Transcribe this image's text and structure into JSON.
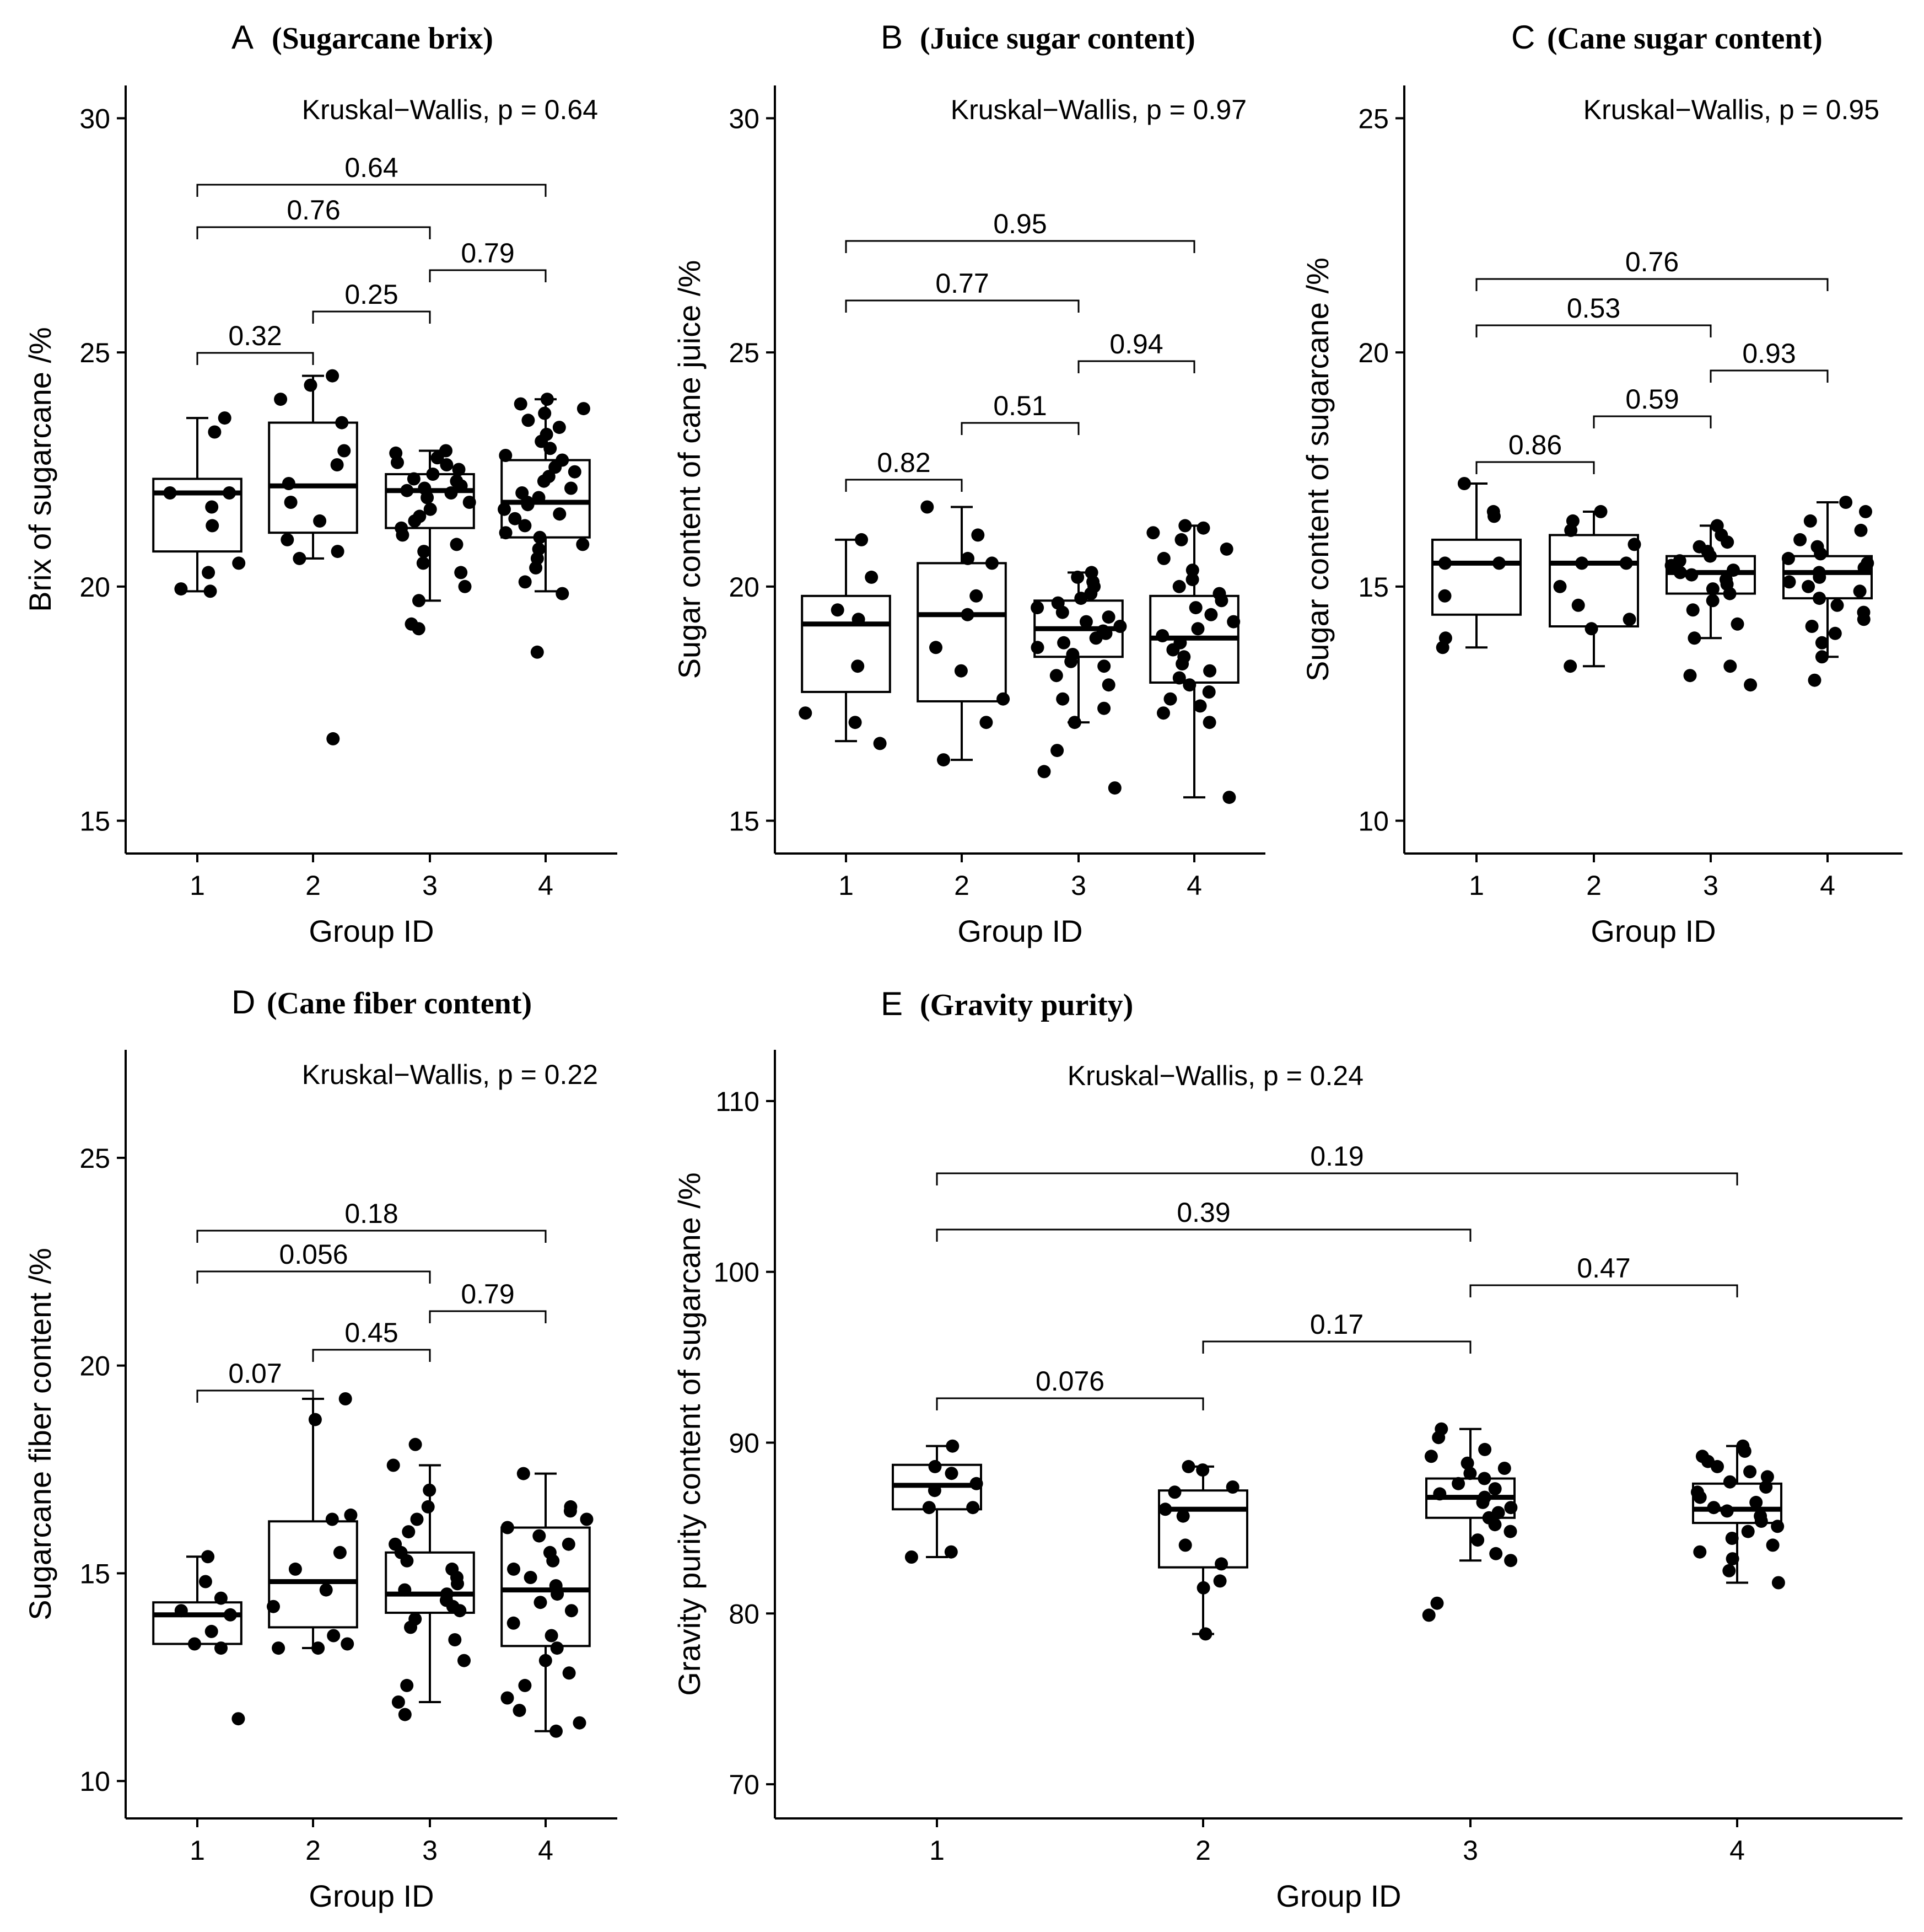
{
  "chart_data": [
    {
      "type": "box",
      "panel_label": "A",
      "title": "(Sugarcane brix)",
      "xlabel": "Group ID",
      "ylabel": "Brix of sugarcane /%",
      "categories": [
        "1",
        "2",
        "3",
        "4"
      ],
      "yticks": [
        15,
        20,
        25,
        30
      ],
      "ylim": [
        14.3,
        30.7
      ],
      "kruskal": "Kruskal−Wallis, p = 0.64",
      "boxes": [
        {
          "group": "1",
          "whisker_low": 19.9,
          "q1": 20.75,
          "median": 22.0,
          "q3": 22.3,
          "whisker_high": 23.6
        },
        {
          "group": "2",
          "whisker_low": 20.6,
          "q1": 21.15,
          "median": 22.15,
          "q3": 23.5,
          "whisker_high": 24.5
        },
        {
          "group": "3",
          "whisker_low": 19.7,
          "q1": 21.25,
          "median": 22.05,
          "q3": 22.4,
          "whisker_high": 22.9
        },
        {
          "group": "4",
          "whisker_low": 19.9,
          "q1": 21.05,
          "median": 21.8,
          "q3": 22.7,
          "whisker_high": 24.0
        }
      ],
      "points": [
        [
          19.9,
          19.95,
          20.3,
          20.5,
          21.3,
          21.7,
          22.0,
          22.0,
          23.3,
          23.6
        ],
        [
          16.75,
          20.6,
          20.75,
          21.0,
          21.4,
          21.8,
          22.2,
          22.6,
          22.9,
          23.5,
          24.0,
          24.3,
          24.5
        ],
        [
          19.1,
          19.2,
          19.7,
          20.0,
          20.3,
          20.5,
          20.75,
          20.9,
          21.1,
          21.25,
          21.4,
          21.5,
          21.65,
          21.8,
          21.9,
          22.0,
          22.05,
          22.1,
          22.15,
          22.25,
          22.3,
          22.4,
          22.5,
          22.6,
          22.65,
          22.75,
          22.85,
          22.9
        ],
        [
          18.6,
          19.85,
          20.1,
          20.4,
          20.6,
          20.8,
          20.9,
          21.05,
          21.15,
          21.3,
          21.45,
          21.55,
          21.65,
          21.75,
          21.8,
          21.9,
          22.0,
          22.1,
          22.25,
          22.35,
          22.45,
          22.55,
          22.7,
          22.8,
          22.95,
          23.1,
          23.25,
          23.4,
          23.55,
          23.7,
          23.8,
          23.9,
          24.0
        ]
      ],
      "comparisons": [
        {
          "groups": [
            "1",
            "2"
          ],
          "p": "0.32"
        },
        {
          "groups": [
            "2",
            "3"
          ],
          "p": "0.25"
        },
        {
          "groups": [
            "3",
            "4"
          ],
          "p": "0.79"
        },
        {
          "groups": [
            "1",
            "3"
          ],
          "p": "0.76"
        },
        {
          "groups": [
            "1",
            "4"
          ],
          "p": "0.64"
        }
      ]
    },
    {
      "type": "box",
      "panel_label": "B",
      "title": "(Juice sugar content)",
      "xlabel": "Group ID",
      "ylabel": "Sugar content of cane juice /%",
      "categories": [
        "1",
        "2",
        "3",
        "4"
      ],
      "yticks": [
        15,
        20,
        25,
        30
      ],
      "ylim": [
        14.3,
        30.7
      ],
      "kruskal": "Kruskal−Wallis, p = 0.97",
      "boxes": [
        {
          "group": "1",
          "whisker_low": 16.7,
          "q1": 17.75,
          "median": 19.2,
          "q3": 19.8,
          "whisker_high": 21.0
        },
        {
          "group": "2",
          "whisker_low": 16.3,
          "q1": 17.55,
          "median": 19.4,
          "q3": 20.5,
          "whisker_high": 21.7
        },
        {
          "group": "3",
          "whisker_low": 17.1,
          "q1": 18.5,
          "median": 19.1,
          "q3": 19.7,
          "whisker_high": 20.3
        },
        {
          "group": "4",
          "whisker_low": 15.5,
          "q1": 17.95,
          "median": 18.9,
          "q3": 19.8,
          "whisker_high": 21.3
        }
      ],
      "points": [
        [
          16.65,
          17.1,
          17.3,
          18.3,
          19.3,
          19.5,
          20.2,
          21.0
        ],
        [
          16.3,
          17.1,
          17.6,
          18.2,
          18.7,
          19.4,
          19.8,
          20.5,
          20.6,
          21.1,
          21.7
        ],
        [
          15.7,
          16.05,
          16.5,
          17.1,
          17.4,
          17.6,
          17.9,
          18.1,
          18.3,
          18.4,
          18.55,
          18.7,
          18.8,
          18.9,
          19.0,
          19.05,
          19.15,
          19.25,
          19.35,
          19.45,
          19.55,
          19.65,
          19.75,
          19.85,
          20.0,
          20.1,
          20.2,
          20.3
        ],
        [
          15.5,
          17.1,
          17.3,
          17.45,
          17.6,
          17.75,
          17.9,
          18.05,
          18.2,
          18.35,
          18.5,
          18.65,
          18.8,
          18.95,
          19.1,
          19.25,
          19.4,
          19.55,
          19.7,
          19.85,
          20.0,
          20.15,
          20.35,
          20.6,
          20.8,
          21.0,
          21.15,
          21.25,
          21.3
        ]
      ],
      "comparisons": [
        {
          "groups": [
            "1",
            "2"
          ],
          "p": "0.82"
        },
        {
          "groups": [
            "2",
            "3"
          ],
          "p": "0.51"
        },
        {
          "groups": [
            "3",
            "4"
          ],
          "p": "0.94"
        },
        {
          "groups": [
            "1",
            "3"
          ],
          "p": "0.77"
        },
        {
          "groups": [
            "1",
            "4"
          ],
          "p": "0.95"
        }
      ]
    },
    {
      "type": "box",
      "panel_label": "C",
      "title": "(Cane sugar content)",
      "xlabel": "Group ID",
      "ylabel": "Sugar content of sugarcane /%",
      "categories": [
        "1",
        "2",
        "3",
        "4"
      ],
      "yticks": [
        10,
        15,
        20,
        25
      ],
      "ylim": [
        9.3,
        25.7
      ],
      "kruskal": "Kruskal−Wallis, p = 0.95",
      "boxes": [
        {
          "group": "1",
          "whisker_low": 13.7,
          "q1": 14.4,
          "median": 15.5,
          "q3": 16.0,
          "whisker_high": 17.2
        },
        {
          "group": "2",
          "whisker_low": 13.3,
          "q1": 14.15,
          "median": 15.5,
          "q3": 16.1,
          "whisker_high": 16.6
        },
        {
          "group": "3",
          "whisker_low": 13.9,
          "q1": 14.85,
          "median": 15.3,
          "q3": 15.65,
          "whisker_high": 16.3
        },
        {
          "group": "4",
          "whisker_low": 13.5,
          "q1": 14.75,
          "median": 15.3,
          "q3": 15.65,
          "whisker_high": 16.8
        }
      ],
      "points": [
        [
          13.7,
          13.9,
          14.8,
          15.5,
          15.5,
          16.5,
          16.6,
          17.2
        ],
        [
          13.3,
          14.1,
          14.3,
          14.6,
          15.0,
          15.5,
          15.5,
          15.9,
          16.2,
          16.4,
          16.6
        ],
        [
          12.9,
          13.1,
          13.3,
          13.9,
          14.2,
          14.5,
          14.7,
          14.85,
          14.95,
          15.05,
          15.15,
          15.25,
          15.3,
          15.35,
          15.45,
          15.55,
          15.65,
          15.75,
          15.85,
          15.95,
          16.1,
          16.3
        ],
        [
          13.0,
          13.5,
          13.8,
          14.0,
          14.15,
          14.3,
          14.45,
          14.6,
          14.75,
          14.9,
          15.0,
          15.1,
          15.2,
          15.3,
          15.4,
          15.5,
          15.6,
          15.7,
          15.85,
          16.0,
          16.2,
          16.4,
          16.6,
          16.8
        ]
      ],
      "comparisons": [
        {
          "groups": [
            "1",
            "2"
          ],
          "p": "0.86"
        },
        {
          "groups": [
            "2",
            "3"
          ],
          "p": "0.59"
        },
        {
          "groups": [
            "3",
            "4"
          ],
          "p": "0.93"
        },
        {
          "groups": [
            "1",
            "3"
          ],
          "p": "0.53"
        },
        {
          "groups": [
            "1",
            "4"
          ],
          "p": "0.76"
        }
      ]
    },
    {
      "type": "box",
      "panel_label": "D",
      "title": "(Cane fiber content)",
      "xlabel": "Group ID",
      "ylabel": "Sugarcane fiber content /%",
      "categories": [
        "1",
        "2",
        "3",
        "4"
      ],
      "yticks": [
        10,
        15,
        20,
        25
      ],
      "ylim": [
        9.1,
        27.6
      ],
      "kruskal": "Kruskal−Wallis, p = 0.22",
      "boxes": [
        {
          "group": "1",
          "whisker_low": 13.3,
          "q1": 13.3,
          "median": 14.0,
          "q3": 14.3,
          "whisker_high": 15.4
        },
        {
          "group": "2",
          "whisker_low": 13.2,
          "q1": 13.7,
          "median": 14.8,
          "q3": 16.25,
          "whisker_high": 19.2
        },
        {
          "group": "3",
          "whisker_low": 11.9,
          "q1": 14.05,
          "median": 14.5,
          "q3": 15.5,
          "whisker_high": 17.6
        },
        {
          "group": "4",
          "whisker_low": 11.2,
          "q1": 13.25,
          "median": 14.6,
          "q3": 16.1,
          "whisker_high": 17.4
        }
      ],
      "points": [
        [
          11.5,
          13.2,
          13.3,
          13.6,
          14.0,
          14.1,
          14.4,
          14.8,
          15.4
        ],
        [
          13.2,
          13.2,
          13.3,
          13.5,
          14.2,
          14.6,
          15.1,
          15.5,
          16.3,
          16.4,
          18.7,
          19.2
        ],
        [
          11.6,
          11.9,
          12.3,
          12.9,
          13.4,
          13.7,
          13.9,
          14.1,
          14.2,
          14.35,
          14.5,
          14.6,
          14.75,
          14.9,
          15.1,
          15.3,
          15.5,
          15.7,
          16.0,
          16.3,
          16.6,
          17.0,
          17.6,
          18.1
        ],
        [
          11.2,
          11.4,
          11.7,
          12.0,
          12.3,
          12.6,
          12.9,
          13.2,
          13.5,
          13.8,
          14.1,
          14.3,
          14.5,
          14.7,
          14.9,
          15.1,
          15.3,
          15.5,
          15.7,
          15.9,
          16.1,
          16.3,
          16.5,
          16.6,
          17.4
        ]
      ],
      "comparisons": [
        {
          "groups": [
            "1",
            "2"
          ],
          "p": "0.07"
        },
        {
          "groups": [
            "2",
            "3"
          ],
          "p": "0.45"
        },
        {
          "groups": [
            "3",
            "4"
          ],
          "p": "0.79"
        },
        {
          "groups": [
            "1",
            "3"
          ],
          "p": "0.056"
        },
        {
          "groups": [
            "1",
            "4"
          ],
          "p": "0.18"
        }
      ]
    },
    {
      "type": "box",
      "panel_label": "E",
      "title": "(Gravity purity)",
      "xlabel": "Group ID",
      "ylabel": "Gravity purity content of sugarcane /%",
      "categories": [
        "1",
        "2",
        "3",
        "4"
      ],
      "yticks": [
        70,
        80,
        90,
        100,
        110
      ],
      "ylim": [
        68.0,
        113.0
      ],
      "kruskal": "Kruskal−Wallis, p = 0.24",
      "boxes": [
        {
          "group": "1",
          "whisker_low": 83.3,
          "q1": 86.1,
          "median": 87.5,
          "q3": 88.7,
          "whisker_high": 89.8
        },
        {
          "group": "2",
          "whisker_low": 78.8,
          "q1": 82.7,
          "median": 86.1,
          "q3": 87.2,
          "whisker_high": 88.6
        },
        {
          "group": "3",
          "whisker_low": 83.1,
          "q1": 85.6,
          "median": 86.8,
          "q3": 87.9,
          "whisker_high": 90.8
        },
        {
          "group": "4",
          "whisker_low": 81.8,
          "q1": 85.3,
          "median": 86.1,
          "q3": 87.6,
          "whisker_high": 89.8
        }
      ],
      "points": [
        [
          83.3,
          83.6,
          86.2,
          86.2,
          87.2,
          87.6,
          88.2,
          88.6,
          89.8
        ],
        [
          78.8,
          81.5,
          81.9,
          82.9,
          84.0,
          85.7,
          86.1,
          87.1,
          87.4,
          88.4,
          88.6
        ],
        [
          79.9,
          80.6,
          83.1,
          83.5,
          84.3,
          84.8,
          85.2,
          85.6,
          85.9,
          86.2,
          86.5,
          86.8,
          87.0,
          87.3,
          87.6,
          87.9,
          88.2,
          88.5,
          88.8,
          89.2,
          89.6,
          90.3,
          90.8
        ],
        [
          81.8,
          82.5,
          83.2,
          83.6,
          84.0,
          84.4,
          84.8,
          85.1,
          85.4,
          85.7,
          86.0,
          86.2,
          86.5,
          86.8,
          87.1,
          87.4,
          87.7,
          88.0,
          88.3,
          88.6,
          88.9,
          89.2,
          89.5,
          89.8
        ]
      ],
      "comparisons": [
        {
          "groups": [
            "1",
            "2"
          ],
          "p": "0.076"
        },
        {
          "groups": [
            "2",
            "3"
          ],
          "p": "0.17"
        },
        {
          "groups": [
            "3",
            "4"
          ],
          "p": "0.47"
        },
        {
          "groups": [
            "1",
            "3"
          ],
          "p": "0.39"
        },
        {
          "groups": [
            "1",
            "4"
          ],
          "p": "0.19"
        }
      ]
    }
  ]
}
